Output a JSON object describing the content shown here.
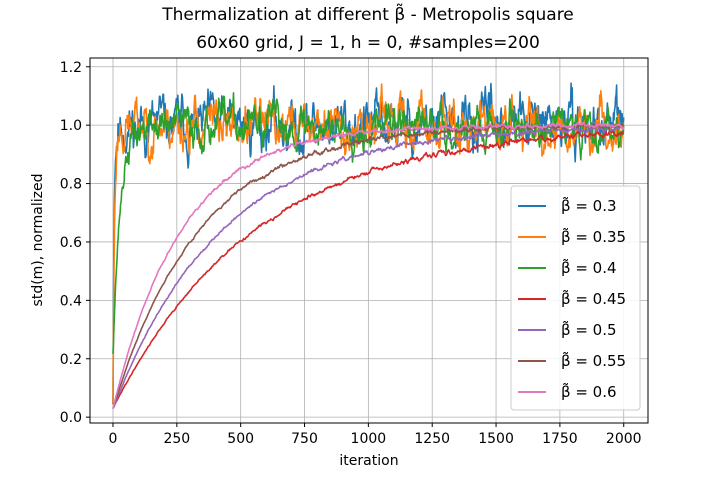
{
  "chart_data": {
    "type": "line",
    "title_line1": "Thermalization at different β̃ - Metropolis square",
    "title_line2": "60x60 grid, J = 1, h = 0, #samples=200",
    "xlabel": "iteration",
    "ylabel": "std(m), normalized",
    "xlim": [
      -90,
      2095
    ],
    "ylim": [
      -0.02,
      1.23
    ],
    "xticks": [
      0,
      250,
      500,
      750,
      1000,
      1250,
      1500,
      1750,
      2000
    ],
    "xtick_labels": [
      "0",
      "250",
      "500",
      "750",
      "1000",
      "1250",
      "1500",
      "1750",
      "2000"
    ],
    "yticks": [
      0.0,
      0.2,
      0.4,
      0.6,
      0.8,
      1.0,
      1.2
    ],
    "ytick_labels": [
      "0.0",
      "0.2",
      "0.4",
      "0.6",
      "0.8",
      "1.0",
      "1.2"
    ],
    "grid": true,
    "legend_position": "lower-right",
    "series": [
      {
        "name": "β̃ = 0.3",
        "color": "#1f77b4",
        "start": 0.05,
        "tau": 4,
        "noise": 0.055,
        "seed": 11
      },
      {
        "name": "β̃ = 0.35",
        "color": "#ff7f0e",
        "start": 0.05,
        "tau": 6,
        "noise": 0.05,
        "seed": 23
      },
      {
        "name": "β̃ = 0.4",
        "color": "#2ca02c",
        "start": 0.22,
        "tau": 28,
        "noise": 0.04,
        "seed": 37
      },
      {
        "name": "β̃ = 0.45",
        "color": "#d62728",
        "start": 0.03,
        "tau": 560,
        "noise": 0.006,
        "seed": 41
      },
      {
        "name": "β̃ = 0.5",
        "color": "#9467bd",
        "start": 0.03,
        "tau": 430,
        "noise": 0.005,
        "seed": 53
      },
      {
        "name": "β̃ = 0.55",
        "color": "#8c564b",
        "start": 0.03,
        "tau": 340,
        "noise": 0.005,
        "seed": 67
      },
      {
        "name": "β̃ = 0.6",
        "color": "#e377c2",
        "start": 0.03,
        "tau": 270,
        "noise": 0.005,
        "seed": 79
      }
    ],
    "x_max": 2000,
    "plateau": 1.0
  }
}
